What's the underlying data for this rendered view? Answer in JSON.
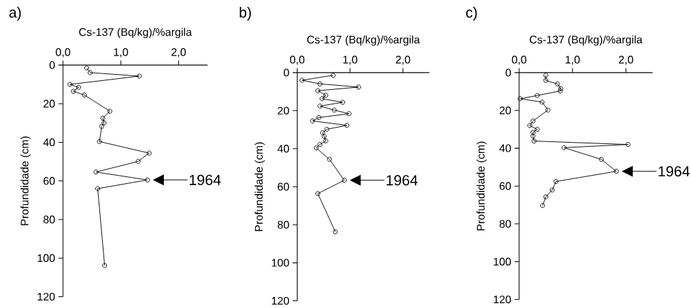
{
  "chart_data": [
    {
      "type": "line",
      "title": "a)",
      "xlabel": "Cs-137 (Bq/kg)/%argila",
      "ylabel": "Profundidade (cm)",
      "xlim": [
        0,
        2.5
      ],
      "ylim": [
        120,
        0
      ],
      "xticks": [
        {
          "value": 0,
          "label": "0,0"
        },
        {
          "value": 1,
          "label": "1,0"
        },
        {
          "value": 2,
          "label": "2,0"
        }
      ],
      "yticks": [
        0,
        20,
        40,
        60,
        80,
        100,
        120
      ],
      "marker": "circle",
      "line_style": "solid",
      "series": [
        {
          "color": "#000000",
          "x": [
            0.41,
            0.47,
            1.32,
            0.12,
            0.27,
            0.18,
            0.37,
            0.81,
            0.69,
            0.71,
            0.67,
            0.63,
            1.49,
            1.3,
            0.57,
            1.46,
            0.6,
            0.72
          ],
          "values": [
            1.5,
            3.9,
            5.7,
            10,
            11.5,
            13.6,
            15.5,
            23.9,
            27.5,
            29.9,
            31.8,
            39.6,
            45.6,
            49.9,
            55.4,
            59.5,
            64,
            103.8
          ]
        }
      ],
      "annotations": [
        {
          "text": "1964",
          "x": 1.46,
          "y": 59.5
        }
      ]
    },
    {
      "type": "line",
      "title": "b)",
      "xlabel": "Cs-137 (Bq/kg)/%argila",
      "ylabel": "Profundidade (cm)",
      "xlim": [
        0,
        2.5
      ],
      "ylim": [
        120,
        0
      ],
      "xticks": [
        {
          "value": 0,
          "label": "0,0"
        },
        {
          "value": 1,
          "label": "1,0"
        },
        {
          "value": 2,
          "label": "2,0"
        }
      ],
      "yticks": [
        0,
        20,
        40,
        60,
        80,
        100,
        120
      ],
      "marker": "circle",
      "line_style": "solid",
      "series": [
        {
          "color": "#000000",
          "x": [
            0.68,
            0.09,
            0.43,
            1.16,
            0.39,
            0.54,
            0.47,
            0.86,
            0.43,
            0.7,
            0.98,
            0.41,
            0.29,
            0.94,
            0.56,
            0.48,
            0.51,
            0.54,
            0.43,
            0.36,
            0.61,
            0.89,
            0.39,
            0.72
          ],
          "values": [
            1.4,
            4.0,
            5.9,
            7.6,
            9.5,
            11.9,
            13.7,
            15.6,
            17.6,
            19.7,
            21.6,
            23.6,
            25.4,
            27.7,
            29.8,
            31.6,
            33.5,
            35.9,
            37.8,
            39.6,
            45.6,
            56.6,
            63.6,
            83.7
          ]
        }
      ],
      "annotations": [
        {
          "text": "1964",
          "x": 0.89,
          "y": 56.6
        }
      ]
    },
    {
      "type": "line",
      "title": "c)",
      "xlabel": "Cs-137 (Bq/kg)/%argila",
      "ylabel": "Profundidade (cm)",
      "xlim": [
        0,
        2.5
      ],
      "ylim": [
        120,
        0
      ],
      "xticks": [
        {
          "value": 0,
          "label": "0,0"
        },
        {
          "value": 1,
          "label": "1,0"
        },
        {
          "value": 2,
          "label": "2,0"
        }
      ],
      "yticks": [
        0,
        20,
        40,
        60,
        80,
        100,
        120
      ],
      "marker": "circle",
      "line_style": "solid",
      "series": [
        {
          "color": "#000000",
          "x": [
            0.5,
            0.5,
            0.72,
            0.78,
            0.77,
            0.34,
            0.02,
            0.43,
            0.54,
            0.26,
            0.2,
            0.34,
            0.26,
            0.26,
            0.28,
            2.04,
            0.84,
            1.54,
            1.82,
            0.69,
            0.62,
            0.5,
            0.44
          ],
          "values": [
            1.4,
            4.1,
            6.0,
            8.5,
            9.7,
            12.1,
            13.8,
            15.6,
            19.8,
            25.6,
            28.0,
            30.0,
            31.6,
            33.6,
            36.2,
            38.0,
            39.7,
            45.9,
            52.2,
            57.6,
            62.1,
            65.7,
            70.3
          ]
        }
      ],
      "annotations": [
        {
          "text": "1964",
          "x": 1.82,
          "y": 52.2
        }
      ]
    }
  ]
}
